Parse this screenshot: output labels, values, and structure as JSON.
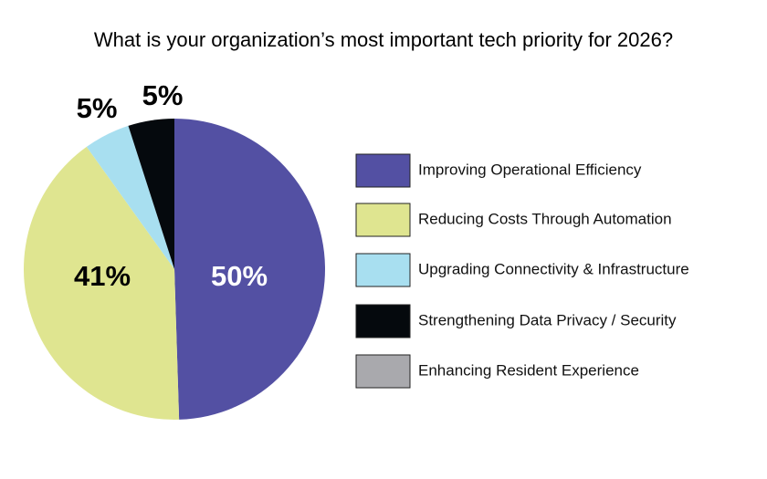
{
  "chart_data": {
    "type": "pie",
    "title": "What is your organization’s most important tech priority for 2026?",
    "categories": [
      "Improving Operational Efficiency",
      "Reducing Costs Through Automation",
      "Upgrading Connectivity & Infrastructure",
      "Strengthening Data Privacy / Security",
      "Enhancing Resident Experience"
    ],
    "values": [
      50,
      41,
      5,
      5,
      0
    ],
    "value_labels": [
      "50%",
      "41%",
      "5%",
      "5%",
      null
    ],
    "colors": [
      "#5350a3",
      "#dfe590",
      "#a8dff0",
      "#05090d",
      "#a9a9ad"
    ]
  }
}
